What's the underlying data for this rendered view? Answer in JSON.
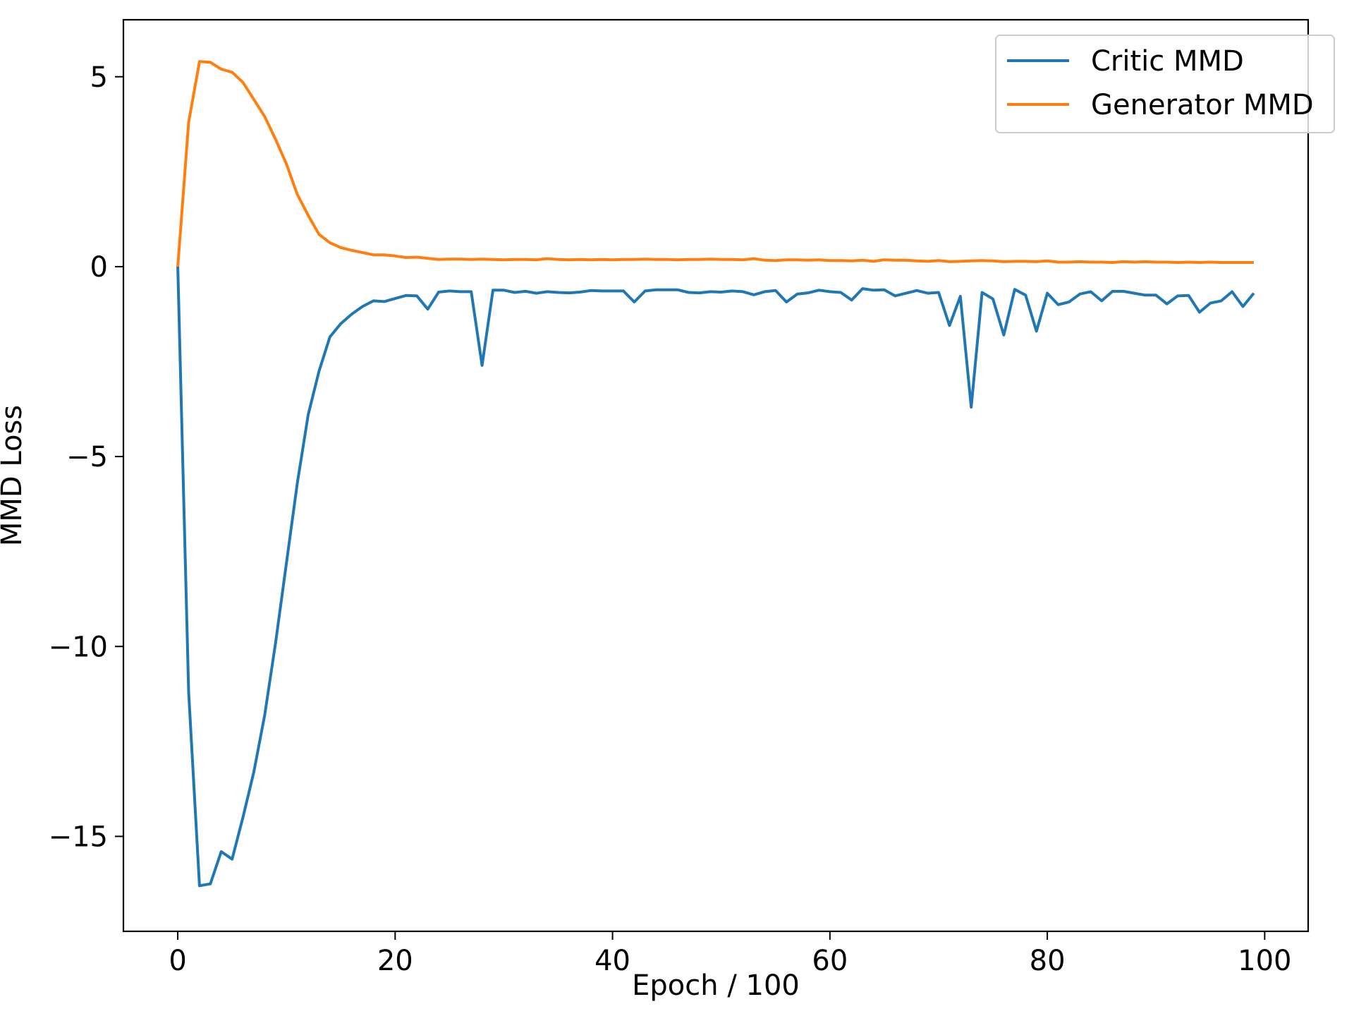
{
  "chart_data": {
    "type": "line",
    "title": "",
    "xlabel": "Epoch / 100",
    "ylabel": "MMD Loss",
    "xlim": [
      -5,
      104
    ],
    "ylim": [
      -17.5,
      6.5
    ],
    "xticks": [
      0,
      20,
      40,
      60,
      80,
      100
    ],
    "yticks": [
      5,
      0,
      -5,
      -10,
      -15
    ],
    "xtick_labels": [
      "0",
      "20",
      "40",
      "60",
      "80",
      "100"
    ],
    "ytick_labels": [
      "5",
      "0",
      "−5",
      "−10",
      "−15"
    ],
    "grid": false,
    "legend_position": "top-right",
    "series": [
      {
        "name": "Critic MMD",
        "color": "#1f77b4",
        "x": [
          0,
          1,
          2,
          3,
          4,
          5,
          6,
          7,
          8,
          9,
          10,
          11,
          12,
          13,
          14,
          15,
          16,
          17,
          18,
          19,
          20,
          21,
          22,
          23,
          24,
          25,
          26,
          27,
          28,
          29,
          30,
          31,
          32,
          33,
          34,
          35,
          36,
          37,
          38,
          39,
          40,
          41,
          42,
          43,
          44,
          45,
          46,
          47,
          48,
          49,
          50,
          51,
          52,
          53,
          54,
          55,
          56,
          57,
          58,
          59,
          60,
          61,
          62,
          63,
          64,
          65,
          66,
          67,
          68,
          69,
          70,
          71,
          72,
          73,
          74,
          75,
          76,
          77,
          78,
          79,
          80,
          81,
          82,
          83,
          84,
          85,
          86,
          87,
          88,
          89,
          90,
          91,
          92,
          93,
          94,
          95,
          96,
          97,
          98,
          99
        ],
        "values": [
          0,
          -11.2,
          -16.3,
          -16.25,
          -15.4,
          -15.6,
          -14.5,
          -13.3,
          -11.8,
          -9.9,
          -7.8,
          -5.7,
          -3.9,
          -2.75,
          -1.85,
          -1.5,
          -1.25,
          -1.05,
          -0.9,
          -0.92,
          -0.84,
          -0.76,
          -0.77,
          -1.12,
          -0.67,
          -0.64,
          -0.66,
          -0.66,
          -2.6,
          -0.62,
          -0.62,
          -0.68,
          -0.65,
          -0.7,
          -0.66,
          -0.68,
          -0.69,
          -0.67,
          -0.63,
          -0.64,
          -0.64,
          -0.64,
          -0.93,
          -0.64,
          -0.61,
          -0.61,
          -0.61,
          -0.68,
          -0.69,
          -0.66,
          -0.67,
          -0.64,
          -0.66,
          -0.74,
          -0.66,
          -0.63,
          -0.93,
          -0.72,
          -0.69,
          -0.62,
          -0.66,
          -0.68,
          -0.88,
          -0.58,
          -0.62,
          -0.61,
          -0.77,
          -0.7,
          -0.63,
          -0.7,
          -0.68,
          -1.55,
          -0.78,
          -3.7,
          -0.68,
          -0.85,
          -1.8,
          -0.6,
          -0.75,
          -1.7,
          -0.7,
          -1.0,
          -0.93,
          -0.72,
          -0.66,
          -0.9,
          -0.65,
          -0.65,
          -0.7,
          -0.75,
          -0.75,
          -0.98,
          -0.77,
          -0.76,
          -1.2,
          -0.96,
          -0.9,
          -0.66,
          -1.05,
          -0.7
        ]
      },
      {
        "name": "Generator MMD",
        "color": "#ff7f0e",
        "x": [
          0,
          1,
          2,
          3,
          4,
          5,
          6,
          7,
          8,
          9,
          10,
          11,
          12,
          13,
          14,
          15,
          16,
          17,
          18,
          19,
          20,
          21,
          22,
          23,
          24,
          25,
          26,
          27,
          28,
          29,
          30,
          31,
          32,
          33,
          34,
          35,
          36,
          37,
          38,
          39,
          40,
          41,
          42,
          43,
          44,
          45,
          46,
          47,
          48,
          49,
          50,
          51,
          52,
          53,
          54,
          55,
          56,
          57,
          58,
          59,
          60,
          61,
          62,
          63,
          64,
          65,
          66,
          67,
          68,
          69,
          70,
          71,
          72,
          73,
          74,
          75,
          76,
          77,
          78,
          79,
          80,
          81,
          82,
          83,
          84,
          85,
          86,
          87,
          88,
          89,
          90,
          91,
          92,
          93,
          94,
          95,
          96,
          97,
          98,
          99
        ],
        "values": [
          0,
          3.8,
          5.4,
          5.38,
          5.2,
          5.12,
          4.85,
          4.4,
          3.95,
          3.35,
          2.7,
          1.9,
          1.35,
          0.85,
          0.63,
          0.5,
          0.43,
          0.37,
          0.31,
          0.31,
          0.28,
          0.24,
          0.25,
          0.22,
          0.19,
          0.2,
          0.2,
          0.19,
          0.2,
          0.19,
          0.18,
          0.19,
          0.19,
          0.18,
          0.21,
          0.19,
          0.18,
          0.19,
          0.18,
          0.19,
          0.18,
          0.19,
          0.19,
          0.2,
          0.19,
          0.19,
          0.18,
          0.19,
          0.19,
          0.2,
          0.19,
          0.19,
          0.18,
          0.21,
          0.17,
          0.16,
          0.18,
          0.18,
          0.17,
          0.18,
          0.16,
          0.16,
          0.15,
          0.17,
          0.14,
          0.18,
          0.17,
          0.17,
          0.15,
          0.14,
          0.16,
          0.13,
          0.14,
          0.15,
          0.16,
          0.15,
          0.13,
          0.14,
          0.14,
          0.13,
          0.15,
          0.12,
          0.12,
          0.13,
          0.12,
          0.12,
          0.11,
          0.13,
          0.12,
          0.13,
          0.12,
          0.12,
          0.11,
          0.12,
          0.11,
          0.12,
          0.11,
          0.11,
          0.11,
          0.11
        ]
      }
    ]
  }
}
